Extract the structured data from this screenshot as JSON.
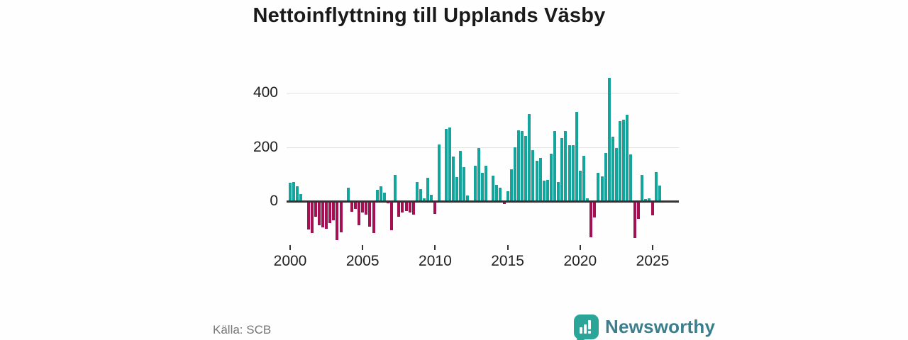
{
  "title": "Nettoinflyttning till Upplands Väsby",
  "source_label": "Källa: SCB",
  "branding": {
    "name": "Newsworthy"
  },
  "colors": {
    "positive_bar": "#14a49b",
    "negative_bar": "#a41153",
    "axis_line": "#333333",
    "gridline": "#e2e2e0",
    "brand_bubble": "#2ba597",
    "brand_text": "#3b7e8d"
  },
  "chart_data": {
    "type": "bar",
    "title": "Nettoinflyttning till Upplands Väsby",
    "xlabel": "",
    "ylabel": "",
    "x_unit": "quarter",
    "x_start": "2000-Q1",
    "x_end": "2025-Q3",
    "x_tick_labels": [
      "2000",
      "2005",
      "2010",
      "2015",
      "2020",
      "2025"
    ],
    "y_ticks": [
      0,
      200,
      400
    ],
    "ylim": [
      -165,
      480
    ],
    "grid": "horizontal",
    "legend": "none",
    "values": [
      67,
      70,
      54,
      26,
      0,
      -102,
      -115,
      -55,
      -85,
      -95,
      -100,
      -78,
      -68,
      -141,
      -111,
      0,
      51,
      -37,
      -27,
      -87,
      -39,
      -46,
      -91,
      -115,
      41,
      54,
      32,
      -5,
      -105,
      97,
      -54,
      -38,
      -33,
      -38,
      -48,
      71,
      45,
      10,
      87,
      23,
      -45,
      208,
      0,
      266,
      273,
      164,
      90,
      186,
      126,
      22,
      0,
      132,
      197,
      104,
      130,
      0,
      95,
      61,
      49,
      -8,
      36,
      117,
      198,
      261,
      259,
      240,
      322,
      188,
      148,
      160,
      76,
      78,
      175,
      259,
      72,
      234,
      258,
      207,
      207,
      330,
      113,
      167,
      10,
      -130,
      -57,
      106,
      91,
      179,
      455,
      238,
      197,
      296,
      302,
      318,
      172,
      -132,
      -63,
      97,
      7,
      11,
      -50,
      107,
      58
    ]
  }
}
